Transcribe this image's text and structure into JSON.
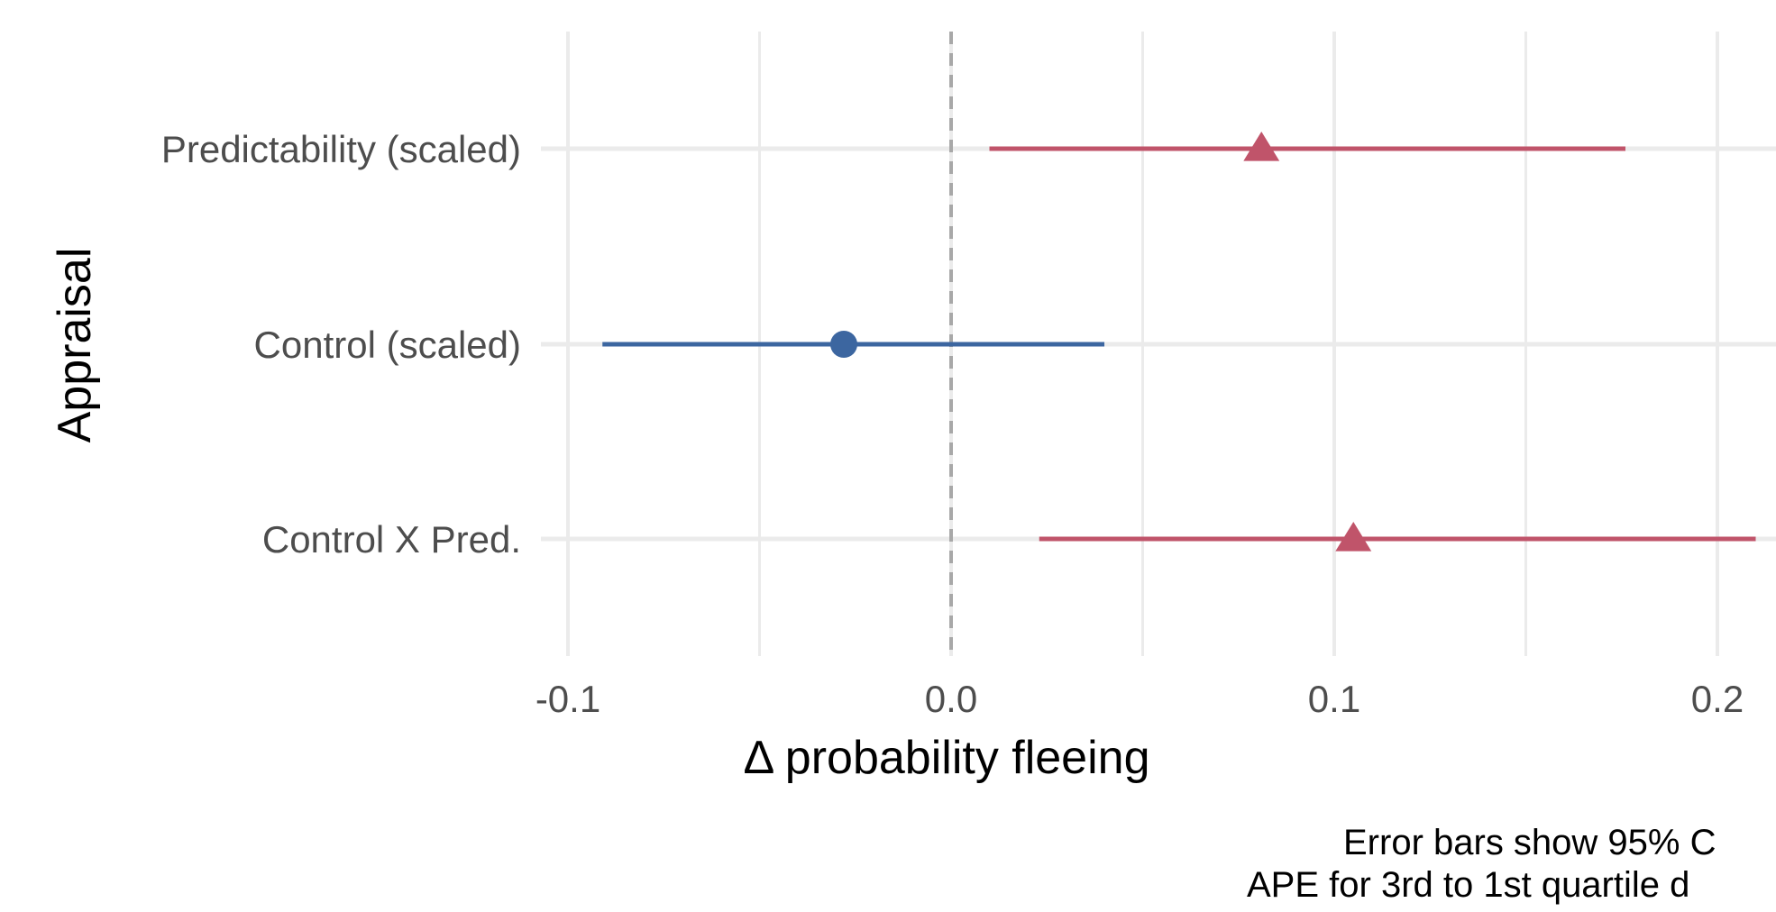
{
  "chart_data": {
    "type": "scatter",
    "subtype": "point-range",
    "orientation": "horizontal",
    "categories": [
      "Predictability (scaled)",
      "Control (scaled)",
      "Control X Pred."
    ],
    "points": [
      {
        "category": "Predictability (scaled)",
        "estimate": 0.081,
        "lower": 0.01,
        "upper": 0.176,
        "color": "#c0546a",
        "shape": "triangle"
      },
      {
        "category": "Control (scaled)",
        "estimate": -0.028,
        "lower": -0.091,
        "upper": 0.04,
        "color": "#3c66a0",
        "shape": "circle"
      },
      {
        "category": "Control X Pred.",
        "estimate": 0.105,
        "lower": 0.023,
        "upper": 0.21,
        "color": "#c0546a",
        "shape": "triangle"
      }
    ],
    "xlabel": "Δ probability fleeing",
    "ylabel": "Appraisal",
    "xticks": [
      -0.1,
      0.0,
      0.1,
      0.2
    ],
    "xtick_labels": [
      "-0.1",
      "0.0",
      "0.1",
      "0.2"
    ],
    "xlim": [
      -0.1,
      0.2
    ],
    "reference_line": {
      "x": 0.0,
      "style": "dashed",
      "color": "#a8a8a8"
    },
    "grid": true,
    "gridline_color": "#ebebeb",
    "caption": [
      "Error bars show 95% C",
      "APE for 3rd to 1st quartile d"
    ]
  }
}
